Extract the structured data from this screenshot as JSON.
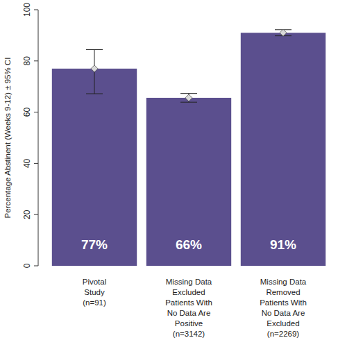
{
  "chart_data": {
    "type": "bar",
    "y_label": "Percentage Abstinent (Weeks 9-12) ± 95% CI",
    "categories": [
      "Pivotal\nStudy\n(n=91)",
      "Missing Data\nExcluded\nPatients With\nNo Data Are\nPositive\n(n=3142)",
      "Missing Data\nRemoved\nPatients With\nNo Data Are\nExcluded\n(n=2269)"
    ],
    "values": [
      77,
      65.6,
      91
    ],
    "value_labels": [
      "77%",
      "66%",
      "91%"
    ],
    "ci_low": [
      67.2,
      63.9,
      89.8
    ],
    "ci_high": [
      84.4,
      67.3,
      92.2
    ],
    "color": "#5b4f8e",
    "marker": "diamond",
    "data_labels": true,
    "ylim": [
      0,
      100
    ],
    "yticks": [
      0,
      20,
      40,
      60,
      80,
      100
    ],
    "grid": false
  }
}
